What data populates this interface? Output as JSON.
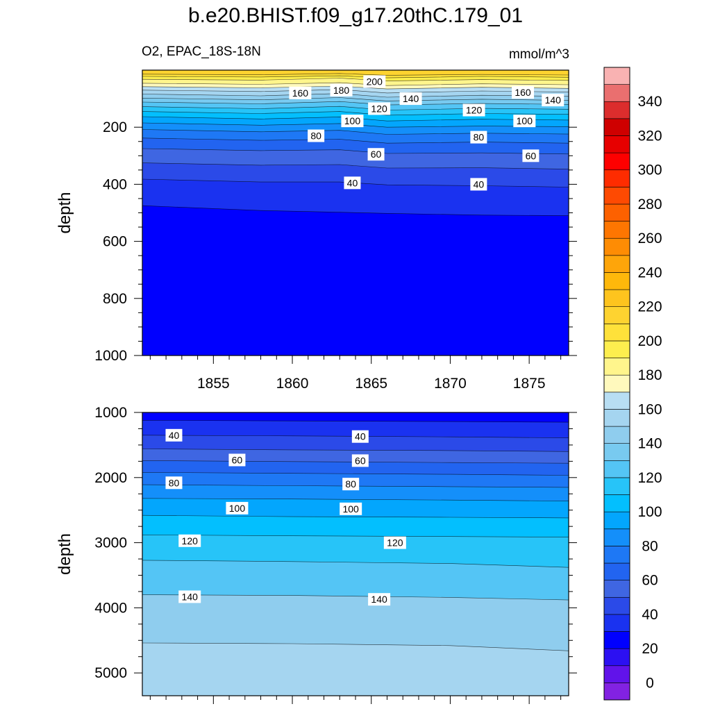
{
  "title": "b.e20.BHIST.f09_g17.20thC.179_01",
  "subtitle_left": "O2, EPAC_18S-18N",
  "subtitle_right": "mmol/m^3",
  "chart_data": [
    {
      "type": "contour",
      "panel": "upper",
      "xlabel": "",
      "ylabel": "depth",
      "xlim": [
        1850.5,
        1877.5
      ],
      "ylim": [
        1000,
        0
      ],
      "x_ticks": [
        1855,
        1860,
        1865,
        1870,
        1875
      ],
      "y_ticks": [
        200,
        400,
        600,
        800,
        1000
      ],
      "contour_levels": [
        40,
        60,
        80,
        100,
        120,
        140,
        160,
        180,
        200
      ],
      "contour_labels": [
        {
          "level": "200",
          "x": 1865.2,
          "y": 40
        },
        {
          "level": "180",
          "x": 1863.1,
          "y": 70
        },
        {
          "level": "160",
          "x": 1860.5,
          "y": 80
        },
        {
          "level": "160",
          "x": 1874.6,
          "y": 78
        },
        {
          "level": "140",
          "x": 1867.5,
          "y": 100
        },
        {
          "level": "140",
          "x": 1876.5,
          "y": 105
        },
        {
          "level": "120",
          "x": 1865.5,
          "y": 135
        },
        {
          "level": "120",
          "x": 1871.5,
          "y": 140
        },
        {
          "level": "100",
          "x": 1863.8,
          "y": 178
        },
        {
          "level": "100",
          "x": 1874.7,
          "y": 178
        },
        {
          "level": "80",
          "x": 1861.5,
          "y": 230
        },
        {
          "level": "80",
          "x": 1871.8,
          "y": 235
        },
        {
          "level": "60",
          "x": 1865.3,
          "y": 295
        },
        {
          "level": "60",
          "x": 1875.1,
          "y": 300
        },
        {
          "level": "40",
          "x": 1863.8,
          "y": 395
        },
        {
          "level": "40",
          "x": 1871.8,
          "y": 400
        }
      ]
    },
    {
      "type": "contour",
      "panel": "lower",
      "xlabel": "",
      "ylabel": "depth",
      "xlim": [
        1850.5,
        1877.5
      ],
      "ylim": [
        5350,
        1000
      ],
      "y_ticks": [
        1000,
        2000,
        3000,
        4000,
        5000
      ],
      "contour_levels": [
        40,
        60,
        80,
        100,
        120,
        140
      ],
      "contour_labels": [
        {
          "level": "40",
          "x": 1852.5,
          "y": 1350
        },
        {
          "level": "40",
          "x": 1864.3,
          "y": 1370
        },
        {
          "level": "60",
          "x": 1856.5,
          "y": 1730
        },
        {
          "level": "60",
          "x": 1864.3,
          "y": 1740
        },
        {
          "level": "80",
          "x": 1852.5,
          "y": 2080
        },
        {
          "level": "80",
          "x": 1863.7,
          "y": 2100
        },
        {
          "level": "100",
          "x": 1856.5,
          "y": 2470
        },
        {
          "level": "100",
          "x": 1863.7,
          "y": 2480
        },
        {
          "level": "120",
          "x": 1853.5,
          "y": 2970
        },
        {
          "level": "120",
          "x": 1866.5,
          "y": 3000
        },
        {
          "level": "140",
          "x": 1853.5,
          "y": 3830
        },
        {
          "level": "140",
          "x": 1865.5,
          "y": 3870
        }
      ]
    }
  ],
  "colorbar": {
    "labels": [
      "0",
      "20",
      "40",
      "60",
      "80",
      "100",
      "120",
      "140",
      "160",
      "180",
      "200",
      "220",
      "240",
      "260",
      "280",
      "300",
      "320",
      "340"
    ],
    "colors": [
      "#8222e2",
      "#6113ea",
      "#2c10f2",
      "#0000ff",
      "#1a32f0",
      "#2b4ae8",
      "#3f66e2",
      "#2264f0",
      "#1e78f5",
      "#148ffa",
      "#03a6fd",
      "#03bffe",
      "#27c4f8",
      "#54c5f5",
      "#78caf0",
      "#8fcdee",
      "#a5d5f0",
      "#b8def3",
      "#fff9bd",
      "#fff58c",
      "#fdee4e",
      "#fee13a",
      "#fed330",
      "#fec41e",
      "#feb80b",
      "#fea50a",
      "#fe8c04",
      "#fe7601",
      "#fd6100",
      "#fe4a02",
      "#fe2c00",
      "#fe0000",
      "#e70000",
      "#cf0000",
      "#dc2d2d",
      "#ea6f6f",
      "#f9b2b2"
    ]
  }
}
